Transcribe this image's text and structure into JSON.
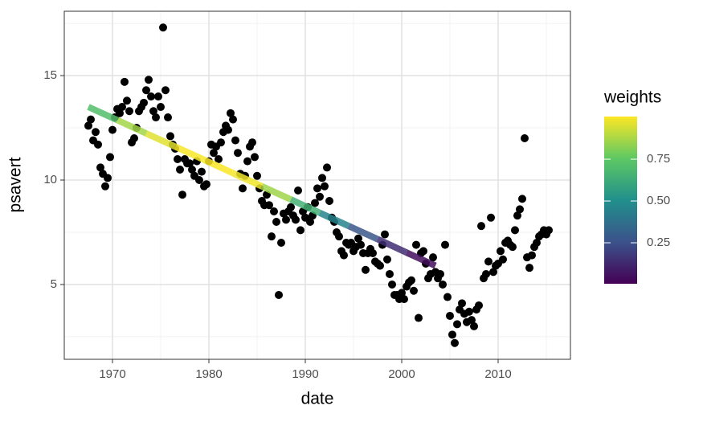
{
  "chart_data": {
    "type": "scatter",
    "x_label": "date",
    "y_label": "psavert",
    "xlim": [
      1965,
      2017.5
    ],
    "ylim": [
      1.42,
      18.08
    ],
    "xticks": [
      1970,
      1980,
      1990,
      2000,
      2010
    ],
    "yticks": [
      5,
      10,
      15
    ],
    "x_minor_grid": [
      1965,
      1975,
      1985,
      1995,
      2005,
      2015
    ],
    "y_minor_grid": [
      2.5,
      7.5,
      12.5,
      17.5
    ],
    "grid": true,
    "point_color": "#000000",
    "x": [
      1967.5,
      1967.75,
      1968,
      1968.25,
      1968.5,
      1968.75,
      1969,
      1969.25,
      1969.5,
      1969.75,
      1970,
      1970.25,
      1970.5,
      1970.75,
      1971,
      1971.25,
      1971.5,
      1971.75,
      1972,
      1972.25,
      1972.5,
      1972.75,
      1973,
      1973.25,
      1973.5,
      1973.75,
      1974,
      1974.25,
      1974.5,
      1974.75,
      1975,
      1975.25,
      1975.5,
      1975.75,
      1976,
      1976.25,
      1976.5,
      1976.75,
      1977,
      1977.25,
      1977.5,
      1977.75,
      1978,
      1978.25,
      1978.5,
      1978.75,
      1979,
      1979.25,
      1979.5,
      1979.75,
      1980,
      1980.25,
      1980.5,
      1980.75,
      1981,
      1981.25,
      1981.5,
      1981.75,
      1982,
      1982.25,
      1982.5,
      1982.75,
      1983,
      1983.25,
      1983.5,
      1983.75,
      1984,
      1984.25,
      1984.5,
      1984.75,
      1985,
      1985.25,
      1985.5,
      1985.75,
      1986,
      1986.25,
      1986.5,
      1986.75,
      1987,
      1987.25,
      1987.5,
      1987.75,
      1988,
      1988.25,
      1988.5,
      1988.75,
      1989,
      1989.25,
      1989.5,
      1989.75,
      1990,
      1990.25,
      1990.5,
      1990.75,
      1991,
      1991.25,
      1991.5,
      1991.75,
      1992,
      1992.25,
      1992.5,
      1992.75,
      1993,
      1993.25,
      1993.5,
      1993.75,
      1994,
      1994.25,
      1994.5,
      1994.75,
      1995,
      1995.25,
      1995.5,
      1995.75,
      1996,
      1996.25,
      1996.5,
      1996.75,
      1997,
      1997.25,
      1997.5,
      1997.75,
      1998,
      1998.25,
      1998.5,
      1998.75,
      1999,
      1999.25,
      1999.5,
      1999.75,
      2000,
      2000.25,
      2000.5,
      2000.75,
      2001,
      2001.25,
      2001.5,
      2001.75,
      2002,
      2002.25,
      2002.5,
      2002.75,
      2003,
      2003.25,
      2003.5,
      2003.75,
      2004,
      2004.25,
      2004.5,
      2004.75,
      2005,
      2005.25,
      2005.5,
      2005.75,
      2006,
      2006.25,
      2006.5,
      2006.75,
      2007,
      2007.25,
      2007.5,
      2007.75,
      2008,
      2008.25,
      2008.5,
      2008.75,
      2009,
      2009.25,
      2009.5,
      2009.75,
      2010,
      2010.25,
      2010.5,
      2010.75,
      2011,
      2011.25,
      2011.5,
      2011.75,
      2012,
      2012.25,
      2012.5,
      2012.75,
      2013,
      2013.25,
      2013.5,
      2013.75,
      2014,
      2014.25,
      2014.5,
      2014.75,
      2015,
      2015.25
    ],
    "values": [
      12.6,
      12.9,
      11.9,
      12.3,
      11.7,
      10.6,
      10.3,
      9.7,
      10.1,
      11.1,
      12.4,
      13.0,
      13.4,
      13.2,
      13.5,
      14.7,
      13.8,
      13.3,
      11.8,
      12.0,
      12.5,
      13.3,
      13.5,
      13.7,
      14.3,
      14.8,
      14.0,
      13.3,
      13.0,
      14.0,
      13.5,
      17.3,
      14.3,
      13.0,
      12.1,
      11.7,
      11.5,
      11.0,
      10.5,
      9.3,
      11.0,
      10.8,
      10.8,
      10.5,
      10.2,
      10.9,
      10.0,
      10.4,
      9.7,
      9.8,
      10.9,
      11.7,
      11.3,
      11.6,
      11.0,
      11.8,
      12.3,
      12.6,
      12.4,
      13.2,
      12.9,
      11.9,
      11.3,
      10.3,
      9.6,
      10.2,
      10.9,
      11.6,
      11.8,
      11.1,
      10.2,
      9.6,
      9.0,
      8.8,
      9.3,
      8.8,
      7.3,
      8.5,
      8.0,
      4.5,
      7.0,
      8.4,
      8.1,
      8.5,
      8.7,
      8.3,
      8.1,
      9.5,
      7.6,
      8.5,
      8.2,
      8.7,
      8.0,
      8.3,
      8.9,
      9.6,
      9.2,
      10.1,
      9.7,
      10.6,
      9.0,
      8.2,
      8.0,
      7.5,
      7.3,
      6.6,
      6.4,
      7.0,
      6.9,
      7.0,
      6.6,
      6.8,
      7.2,
      6.9,
      6.5,
      5.7,
      6.5,
      6.7,
      6.5,
      6.1,
      6.0,
      5.9,
      6.9,
      7.4,
      6.2,
      5.5,
      5.0,
      4.5,
      4.5,
      4.3,
      4.6,
      4.3,
      4.9,
      5.1,
      5.2,
      4.7,
      6.9,
      3.4,
      6.5,
      6.6,
      6.0,
      5.3,
      5.5,
      6.3,
      5.6,
      5.3,
      5.5,
      5.0,
      6.9,
      4.4,
      3.5,
      2.6,
      2.2,
      3.1,
      3.8,
      4.1,
      3.6,
      3.2,
      3.7,
      3.3,
      3.0,
      3.8,
      4.0,
      7.8,
      5.3,
      5.5,
      6.1,
      8.2,
      5.6,
      5.9,
      6.0,
      6.6,
      6.2,
      7.0,
      7.1,
      6.9,
      6.8,
      7.6,
      8.3,
      8.6,
      9.1,
      12.0,
      6.3,
      5.8,
      6.4,
      6.8,
      7.0,
      7.3,
      7.4,
      7.6,
      7.4,
      7.6
    ],
    "fit_line": {
      "x": [
        1967.5,
        1970.5,
        1973.5,
        1976.5,
        1979.5,
        1982.5,
        1985.5,
        1988.5,
        1991.5,
        1994.5,
        1997.5,
        2000.5,
        2003.5
      ],
      "values": [
        13.5,
        12.87,
        12.23,
        11.6,
        10.97,
        10.33,
        9.7,
        9.07,
        8.43,
        7.8,
        7.17,
        6.53,
        5.9
      ],
      "weights": [
        0.62,
        0.8,
        0.93,
        0.99,
        1.0,
        1.0,
        0.97,
        0.75,
        0.55,
        0.35,
        0.2,
        0.08,
        0.01
      ]
    },
    "legend": {
      "title": "weights",
      "colormap": "viridis",
      "limits": [
        0.005,
        1.005
      ],
      "ticks": [
        {
          "value": 0.25,
          "label": "0.25"
        },
        {
          "value": 0.5,
          "label": "0.50"
        },
        {
          "value": 0.75,
          "label": "0.75"
        }
      ]
    }
  }
}
